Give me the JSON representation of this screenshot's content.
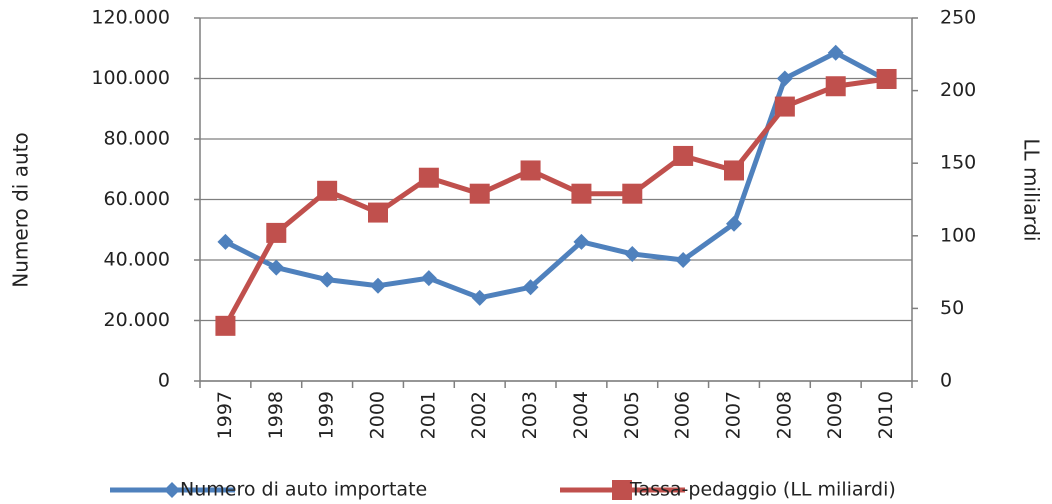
{
  "chart_data": {
    "type": "line",
    "categories": [
      "1997",
      "1998",
      "1999",
      "2000",
      "2001",
      "2002",
      "2003",
      "2004",
      "2005",
      "2006",
      "2007",
      "2008",
      "2009",
      "2010"
    ],
    "y_label": "Numero di auto",
    "y2_label": "LL miliardi",
    "series": [
      {
        "name": "Numero di auto importate",
        "color": "#4f81bd",
        "marker": "diamond",
        "values": [
          46000,
          37500,
          33500,
          31500,
          34000,
          27500,
          31000,
          46000,
          42000,
          40000,
          52000,
          100000,
          108500,
          99500
        ]
      },
      {
        "name": "Tassa-pedaggio (LL miliardi)",
        "color": "#c0504d",
        "marker": "square",
        "axis": "y2",
        "values": [
          38,
          102,
          131,
          116,
          140,
          129,
          145,
          129,
          129,
          155,
          145,
          189,
          203,
          208
        ]
      }
    ],
    "ylim": [
      0,
      120000
    ],
    "yticks": [
      0,
      {
        "value": 20000,
        "label": "20.000"
      },
      {
        "value": 40000,
        "label": "40.000"
      },
      {
        "value": 60000,
        "label": "60.000"
      },
      {
        "value": 80000,
        "label": "80.000"
      },
      {
        "value": 100000,
        "label": "100.000"
      },
      {
        "value": 120000,
        "label": "120.000"
      }
    ],
    "y2lim": [
      0,
      250
    ],
    "y2ticks": [
      0,
      50,
      100,
      150,
      200,
      250
    ],
    "grid": true,
    "legend": "bottom"
  }
}
